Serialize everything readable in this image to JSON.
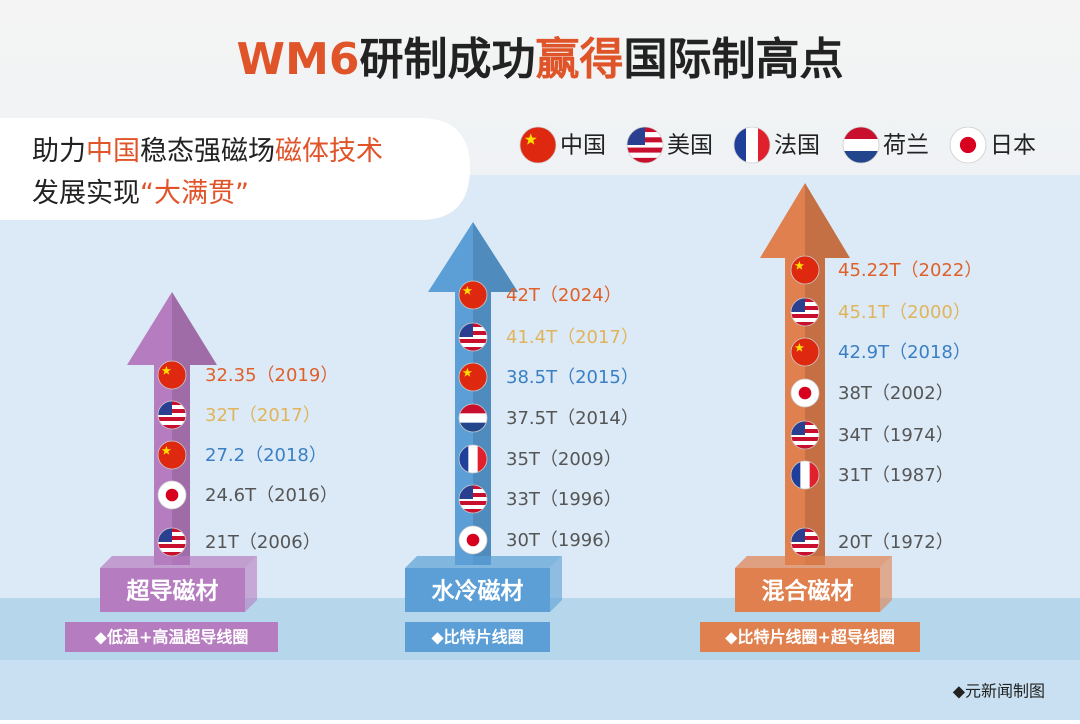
{
  "header": {
    "title": [
      {
        "text": "WM6",
        "color": "#e0542a"
      },
      {
        "text": "研制成功",
        "color": "#222222"
      },
      {
        "text": "赢得",
        "color": "#e0542a"
      },
      {
        "text": "国际制高点",
        "color": "#222222"
      }
    ],
    "subtitle_line1": [
      {
        "text": "助力",
        "color": "#222222"
      },
      {
        "text": "中国",
        "color": "#e0542a"
      },
      {
        "text": "稳态强磁场",
        "color": "#222222"
      },
      {
        "text": "磁体技术",
        "color": "#e0542a"
      }
    ],
    "subtitle_line2": [
      {
        "text": "发展实现",
        "color": "#222222"
      },
      {
        "text": "“大满贯”",
        "color": "#e0542a"
      }
    ]
  },
  "legend": [
    "中国",
    "美国",
    "法国",
    "荷兰",
    "日本"
  ],
  "columns": [
    {
      "label": "超导磁材",
      "note": "◆低温+高温超导线圈",
      "color": "#b67cc0",
      "records": [
        {
          "country": "中国",
          "text": "32.35（2019）",
          "color": "#e0602a"
        },
        {
          "country": "美国",
          "text": "32T（2017）",
          "color": "#e0b45a"
        },
        {
          "country": "中国",
          "text": "27.2（2018）",
          "color": "#3a7fc4"
        },
        {
          "country": "日本",
          "text": "24.6T（2016）",
          "color": "#555555"
        },
        {
          "country": "美国",
          "text": "21T（2006）",
          "color": "#555555"
        }
      ]
    },
    {
      "label": "水冷磁材",
      "note": "◆比特片线圈",
      "color": "#5b9fd6",
      "records": [
        {
          "country": "中国",
          "text": "42T（2024）",
          "color": "#e0602a"
        },
        {
          "country": "美国",
          "text": "41.4T（2017）",
          "color": "#e0b45a"
        },
        {
          "country": "中国",
          "text": "38.5T（2015）",
          "color": "#3a7fc4"
        },
        {
          "country": "荷兰",
          "text": "37.5T（2014）",
          "color": "#555555"
        },
        {
          "country": "法国",
          "text": "35T（2009）",
          "color": "#555555"
        },
        {
          "country": "美国",
          "text": "33T（1996）",
          "color": "#555555"
        },
        {
          "country": "日本",
          "text": "30T（1996）",
          "color": "#555555"
        }
      ]
    },
    {
      "label": "混合磁材",
      "note": "◆比特片线圈+超导线圈",
      "color": "#e0804e",
      "records": [
        {
          "country": "中国",
          "text": "45.22T（2022）",
          "color": "#e0602a"
        },
        {
          "country": "美国",
          "text": "45.1T（2000）",
          "color": "#e0b45a"
        },
        {
          "country": "中国",
          "text": "42.9T（2018）",
          "color": "#3a7fc4"
        },
        {
          "country": "日本",
          "text": "38T（2002）",
          "color": "#555555"
        },
        {
          "country": "美国",
          "text": "34T（1974）",
          "color": "#555555"
        },
        {
          "country": "法国",
          "text": "31T（1987）",
          "color": "#555555"
        },
        {
          "country": "美国",
          "text": "20T（1972）",
          "color": "#555555"
        }
      ]
    }
  ],
  "credit": "◆元新闻制图"
}
